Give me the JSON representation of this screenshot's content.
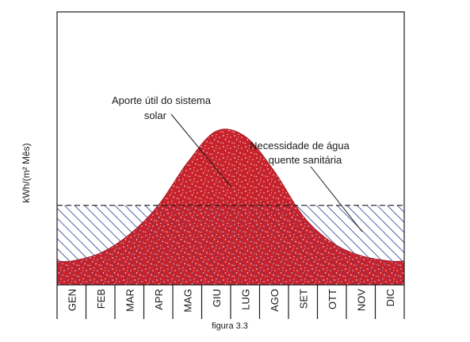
{
  "chart_data": {
    "type": "area",
    "title": "",
    "xlabel": "",
    "ylabel": "kWh/(m² Mês)",
    "categories": [
      "GEN",
      "FEB",
      "MAR",
      "APR",
      "MAG",
      "GIU",
      "LUG",
      "AGO",
      "SET",
      "OTT",
      "NOV",
      "DIC"
    ],
    "ylim": [
      0,
      10
    ],
    "series": [
      {
        "name": "Aporte útil do sistema solar",
        "values": [
          0.9,
          1.2,
          1.9,
          3.0,
          4.6,
          5.8,
          5.6,
          4.3,
          2.6,
          1.6,
          1.1,
          0.9
        ],
        "style": "red-speckled"
      },
      {
        "name": "Necessidade de água quente sanitária",
        "values": [
          3.0,
          3.0,
          3.0,
          3.0,
          3.0,
          3.0,
          3.0,
          3.0,
          3.0,
          3.0,
          3.0,
          3.0
        ],
        "style": "blue-hatched"
      }
    ],
    "annotations": [
      {
        "line1": "Aporte útil do sistema",
        "line2": "solar",
        "target": "Aporte útil do sistema solar"
      },
      {
        "line1": "Necessidade de água",
        "line2": "quente sanitária",
        "target": "Necessidade de água quente sanitária"
      }
    ],
    "caption": "figura 3.3",
    "grid": false,
    "legend": "none",
    "colors": {
      "solar_fill": "#c8232c",
      "demand_hatch": "#2b3a8c",
      "frame": "#1a1a1a"
    }
  }
}
